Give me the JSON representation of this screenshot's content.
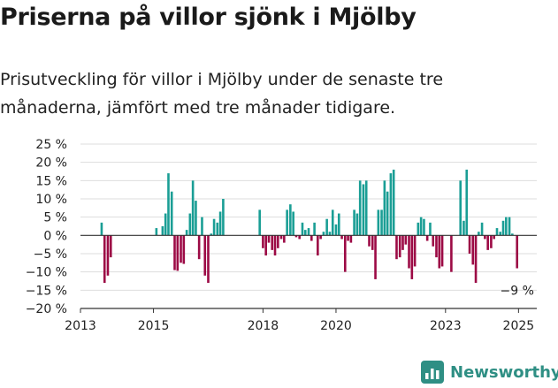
{
  "header": {
    "title": "Priserna på villor sjönk i Mjölby",
    "subtitle": "Prisutveckling för villor i Mjölby under de senaste tre månaderna, jämfört med tre månader tidigare."
  },
  "brand": {
    "name": "Newsworthy",
    "icon": "newsworthy-logo-icon",
    "color": "#2f8f84"
  },
  "colors": {
    "positive": "#1a9e95",
    "negative": "#9c0a45"
  },
  "chart_data": {
    "type": "bar",
    "title": "Priserna på villor sjönk i Mjölby",
    "xlabel": "",
    "ylabel": "",
    "ylim": [
      -20,
      25
    ],
    "xlim": [
      2013,
      2025.5
    ],
    "yticks": [
      25,
      20,
      15,
      10,
      5,
      0,
      -5,
      -10,
      -15,
      -20
    ],
    "ytick_labels": [
      "25 %",
      "20 %",
      "15 %",
      "10 %",
      "5 %",
      "0 %",
      "−5 %",
      "−10 %",
      "−15 %",
      "−20 %"
    ],
    "xticks": [
      2013,
      2015,
      2018,
      2020,
      2023,
      2025
    ],
    "xtick_labels": [
      "2013",
      "2015",
      "2018",
      "2020",
      "2023",
      "2025"
    ],
    "grid": "horizontal",
    "legend": "none",
    "annotation": {
      "text": "−9 %",
      "x": 2024.96,
      "y": -9
    },
    "series": [
      {
        "x": [
          2013.58,
          2013.66,
          2013.75,
          2013.83,
          2015.08,
          2015.25,
          2015.33,
          2015.41,
          2015.5,
          2015.58,
          2015.66,
          2015.75,
          2015.83,
          2015.91,
          2016.0,
          2016.08,
          2016.16,
          2016.25,
          2016.33,
          2016.41,
          2016.5,
          2016.58,
          2016.66,
          2016.75,
          2016.83,
          2016.91,
          2017.91,
          2018.0,
          2018.08,
          2018.16,
          2018.25,
          2018.33,
          2018.41,
          2018.5,
          2018.58,
          2018.66,
          2018.75,
          2018.83,
          2018.91,
          2019.0,
          2019.08,
          2019.16,
          2019.25,
          2019.33,
          2019.41,
          2019.5,
          2019.58,
          2019.66,
          2019.75,
          2019.83,
          2019.91,
          2020.0,
          2020.08,
          2020.16,
          2020.25,
          2020.33,
          2020.41,
          2020.5,
          2020.58,
          2020.66,
          2020.75,
          2020.83,
          2020.91,
          2021.0,
          2021.08,
          2021.16,
          2021.25,
          2021.33,
          2021.41,
          2021.5,
          2021.58,
          2021.66,
          2021.75,
          2021.83,
          2021.91,
          2022.0,
          2022.08,
          2022.16,
          2022.25,
          2022.33,
          2022.41,
          2022.5,
          2022.58,
          2022.66,
          2022.75,
          2022.83,
          2022.91,
          2023.16,
          2023.41,
          2023.5,
          2023.58,
          2023.66,
          2023.75,
          2023.83,
          2023.91,
          2024.0,
          2024.08,
          2024.16,
          2024.25,
          2024.33,
          2024.41,
          2024.5,
          2024.58,
          2024.66,
          2024.75,
          2024.83,
          2024.96
        ],
        "values": [
          3.5,
          -13,
          -11,
          -6,
          2,
          2.5,
          6,
          17,
          12,
          -9.5,
          -9.7,
          -7.5,
          -7.8,
          1.5,
          6,
          15,
          9.5,
          -6.5,
          5,
          -11,
          -13,
          0.5,
          4.5,
          3.5,
          6.5,
          10,
          7,
          -3.5,
          -5.5,
          -2,
          -4,
          -5.5,
          -3.5,
          -1,
          -2,
          7,
          8.5,
          6.5,
          -0.5,
          -1,
          3.5,
          1.5,
          2,
          -1.5,
          3.5,
          -5.5,
          -1,
          1,
          4.5,
          1,
          7,
          3,
          6,
          -1,
          -10,
          -1.5,
          -2,
          7,
          6,
          15,
          14,
          15,
          -3,
          -4,
          -12,
          7,
          7,
          15,
          12,
          17,
          18,
          -6.5,
          -6,
          -4,
          -2.5,
          -9,
          -12,
          -8.5,
          3.5,
          5,
          4.5,
          -1.5,
          3.5,
          -3,
          -6,
          -9,
          -8.5,
          -10,
          15,
          4,
          18,
          -5,
          -8,
          -13,
          1,
          3.5,
          -1,
          -4,
          -3.5,
          -1,
          2,
          1,
          4,
          5,
          5,
          0.5,
          -9
        ]
      }
    ]
  }
}
